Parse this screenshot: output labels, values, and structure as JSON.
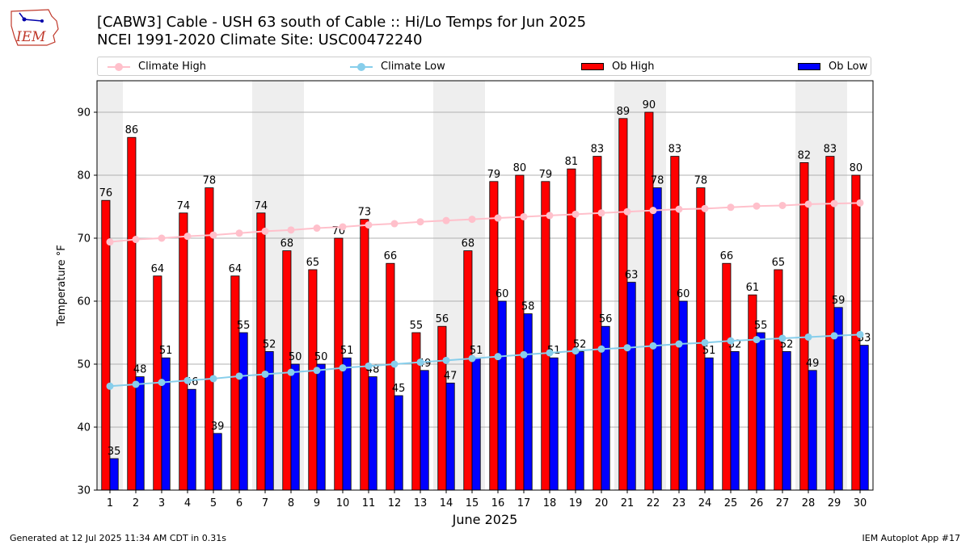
{
  "header": {
    "logo_text": "IEM",
    "title_line1": "[CABW3] Cable - USH 63 south of Cable :: Hi/Lo Temps for Jun 2025",
    "title_line2": "NCEI 1991-2020 Climate Site: USC00472240"
  },
  "footer": {
    "left": "Generated at 12 Jul 2025 11:34 AM CDT in 0.31s",
    "right": "IEM Autoplot App #17"
  },
  "colors": {
    "ob_high": "#ff0000",
    "ob_low": "#0000ff",
    "climate_high": "#ffc0cb",
    "climate_low": "#87ceeb",
    "weekend_band": "#eeeeee",
    "grid": "#b0b0b0"
  },
  "legend": [
    {
      "label": "Climate High",
      "kind": "line",
      "color": "#ffc0cb"
    },
    {
      "label": "Climate Low",
      "kind": "line",
      "color": "#87ceeb"
    },
    {
      "label": "Ob High",
      "kind": "box",
      "color": "#ff0000"
    },
    {
      "label": "Ob Low",
      "kind": "box",
      "color": "#0000ff"
    }
  ],
  "chart_data": {
    "type": "bar",
    "title": "[CABW3] Cable - USH 63 south of Cable :: Hi/Lo Temps for Jun 2025",
    "subtitle": "NCEI 1991-2020 Climate Site: USC00472240",
    "xlabel": "June 2025",
    "ylabel": "Temperature °F",
    "ylim": [
      30,
      95
    ],
    "yticks": [
      30,
      40,
      50,
      60,
      70,
      80,
      90
    ],
    "grid": true,
    "legend_position": "top",
    "categories": [
      1,
      2,
      3,
      4,
      5,
      6,
      7,
      8,
      9,
      10,
      11,
      12,
      13,
      14,
      15,
      16,
      17,
      18,
      19,
      20,
      21,
      22,
      23,
      24,
      25,
      26,
      27,
      28,
      29,
      30
    ],
    "weekend_days": [
      1,
      7,
      8,
      14,
      15,
      21,
      22,
      28,
      29
    ],
    "series": [
      {
        "name": "Ob High",
        "kind": "bar",
        "values": [
          76,
          86,
          64,
          74,
          78,
          64,
          74,
          68,
          65,
          70,
          73,
          66,
          55,
          56,
          68,
          79,
          80,
          79,
          81,
          83,
          89,
          90,
          83,
          78,
          66,
          61,
          65,
          82,
          83,
          80
        ]
      },
      {
        "name": "Ob Low",
        "kind": "bar",
        "values": [
          35,
          48,
          51,
          46,
          39,
          55,
          52,
          50,
          50,
          51,
          48,
          45,
          49,
          47,
          51,
          60,
          58,
          51,
          52,
          56,
          63,
          78,
          60,
          51,
          52,
          55,
          52,
          49,
          59,
          53
        ]
      },
      {
        "name": "Climate High",
        "kind": "line",
        "values": [
          69.4,
          69.8,
          70.0,
          70.3,
          70.5,
          70.8,
          71.1,
          71.3,
          71.6,
          71.8,
          72.1,
          72.3,
          72.6,
          72.8,
          73.0,
          73.2,
          73.4,
          73.6,
          73.8,
          74.0,
          74.2,
          74.4,
          74.6,
          74.7,
          74.9,
          75.1,
          75.2,
          75.4,
          75.5,
          75.6
        ]
      },
      {
        "name": "Climate Low",
        "kind": "line",
        "values": [
          46.5,
          46.8,
          47.1,
          47.4,
          47.7,
          48.1,
          48.4,
          48.7,
          49.0,
          49.4,
          49.7,
          50.0,
          50.3,
          50.6,
          50.9,
          51.2,
          51.5,
          51.8,
          52.1,
          52.4,
          52.6,
          52.9,
          53.2,
          53.4,
          53.7,
          53.9,
          54.1,
          54.3,
          54.5,
          54.7
        ]
      }
    ]
  }
}
